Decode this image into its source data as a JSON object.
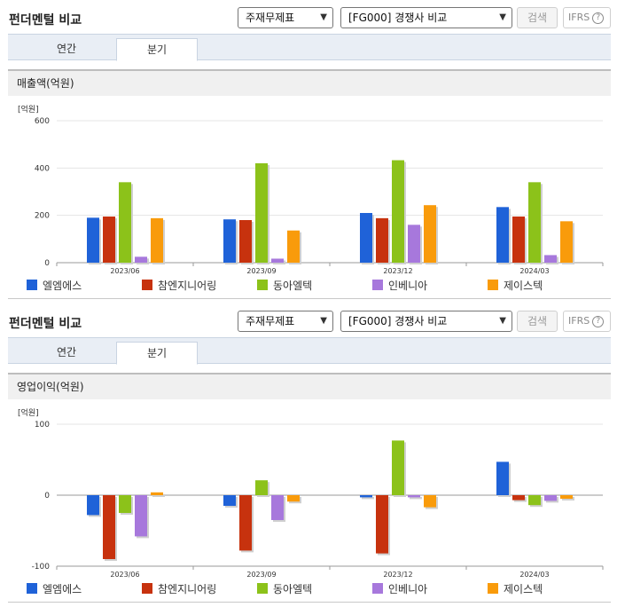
{
  "panels": [
    {
      "title": "펀더멘털 비교",
      "report_select": "주재무제표",
      "peer_select": "[FG000] 경쟁사 비교",
      "search_label": "검색",
      "ifrs_label": "IFRS",
      "help_glyph": "?",
      "tabs": [
        "연간",
        "분기"
      ],
      "active_tab": "분기",
      "section_title": "매출액(억원)",
      "unit_label": "[억원]"
    },
    {
      "title": "펀더멘털 비교",
      "report_select": "주재무제표",
      "peer_select": "[FG000] 경쟁사 비교",
      "search_label": "검색",
      "ifrs_label": "IFRS",
      "help_glyph": "?",
      "tabs": [
        "연간",
        "분기"
      ],
      "active_tab": "분기",
      "section_title": "영업이익(억원)",
      "unit_label": "[억원]"
    }
  ],
  "chart_data": [
    {
      "type": "bar",
      "ylabel": "[억원]",
      "ylim": [
        0,
        600
      ],
      "yticks": [
        0,
        200,
        400,
        600
      ],
      "categories": [
        "2023/06",
        "2023/09",
        "2023/12",
        "2024/03"
      ],
      "grid": true,
      "legend": "bottom",
      "series": [
        {
          "name": "엘엠에스",
          "color": "#1f62d8",
          "values": [
            190,
            183,
            210,
            235
          ]
        },
        {
          "name": "참엔지니어링",
          "color": "#c7320e",
          "values": [
            195,
            180,
            188,
            195
          ]
        },
        {
          "name": "동아엘텍",
          "color": "#8cc21a",
          "values": [
            340,
            420,
            433,
            340
          ]
        },
        {
          "name": "인베니아",
          "color": "#a778dc",
          "values": [
            25,
            17,
            160,
            32
          ]
        },
        {
          "name": "제이스텍",
          "color": "#f99b0b",
          "values": [
            188,
            136,
            243,
            175
          ]
        }
      ]
    },
    {
      "type": "bar",
      "ylabel": "[억원]",
      "ylim": [
        -100,
        100
      ],
      "yticks": [
        -100,
        0,
        100
      ],
      "categories": [
        "2023/06",
        "2023/09",
        "2023/12",
        "2024/03"
      ],
      "grid": true,
      "legend": "bottom",
      "series": [
        {
          "name": "엘엠에스",
          "color": "#1f62d8",
          "values": [
            -28,
            -15,
            -3,
            47
          ]
        },
        {
          "name": "참엔지니어링",
          "color": "#c7320e",
          "values": [
            -90,
            -78,
            -82,
            -7
          ]
        },
        {
          "name": "동아엘텍",
          "color": "#8cc21a",
          "values": [
            -25,
            21,
            77,
            -14
          ]
        },
        {
          "name": "인베니아",
          "color": "#a778dc",
          "values": [
            -58,
            -35,
            -3,
            -8
          ]
        },
        {
          "name": "제이스텍",
          "color": "#f99b0b",
          "values": [
            4,
            -9,
            -17,
            -5
          ]
        }
      ]
    }
  ]
}
